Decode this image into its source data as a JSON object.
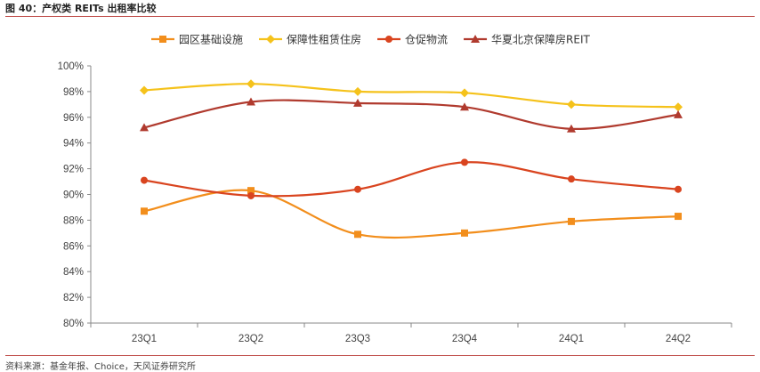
{
  "figure": {
    "title": "图 40：产权类 REITs 出租率比较",
    "source": "资料来源：基金年报、Choice，天风证券研究所"
  },
  "chart_data": {
    "type": "line",
    "categories": [
      "23Q1",
      "23Q2",
      "23Q3",
      "23Q4",
      "24Q1",
      "24Q2"
    ],
    "ylim": [
      80,
      100
    ],
    "yticks": [
      "80%",
      "82%",
      "84%",
      "86%",
      "88%",
      "90%",
      "92%",
      "94%",
      "96%",
      "98%",
      "100%"
    ],
    "grid": false,
    "legend_position": "top",
    "series": [
      {
        "name": "园区基础设施",
        "color": "#f28e1c",
        "marker": "square",
        "values": [
          88.7,
          90.3,
          86.9,
          87.0,
          87.9,
          88.3
        ]
      },
      {
        "name": "保障性租赁住房",
        "color": "#f5c21b",
        "marker": "diamond",
        "values": [
          98.1,
          98.6,
          98.0,
          97.9,
          97.0,
          96.8
        ]
      },
      {
        "name": "仓促物流",
        "color": "#d9441f",
        "marker": "circle",
        "values": [
          91.1,
          89.9,
          90.4,
          92.5,
          91.2,
          90.4
        ]
      },
      {
        "name": "华夏北京保障房REIT",
        "color": "#b03a2e",
        "marker": "triangle",
        "values": [
          95.2,
          97.2,
          97.1,
          96.8,
          95.1,
          96.2
        ]
      }
    ]
  }
}
